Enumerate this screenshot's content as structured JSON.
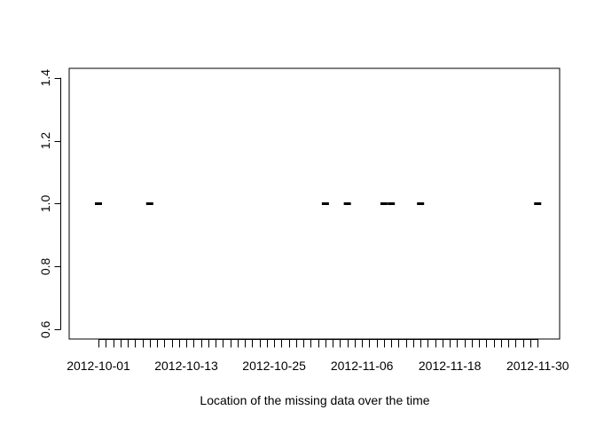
{
  "chart_data": {
    "type": "scatter",
    "title": "",
    "xlabel": "Location of the missing data over the time",
    "ylabel": "",
    "xlim": [
      "2012-09-27",
      "2012-12-03"
    ],
    "ylim": [
      0.57,
      1.43
    ],
    "x_ticks": [
      "2012-10-01",
      "2012-10-02",
      "2012-10-03",
      "2012-10-04",
      "2012-10-05",
      "2012-10-06",
      "2012-10-07",
      "2012-10-08",
      "2012-10-09",
      "2012-10-10",
      "2012-10-11",
      "2012-10-12",
      "2012-10-13",
      "2012-10-14",
      "2012-10-15",
      "2012-10-16",
      "2012-10-17",
      "2012-10-18",
      "2012-10-19",
      "2012-10-20",
      "2012-10-21",
      "2012-10-22",
      "2012-10-23",
      "2012-10-24",
      "2012-10-25",
      "2012-10-26",
      "2012-10-27",
      "2012-10-28",
      "2012-10-29",
      "2012-10-30",
      "2012-10-31",
      "2012-11-01",
      "2012-11-02",
      "2012-11-03",
      "2012-11-04",
      "2012-11-05",
      "2012-11-06",
      "2012-11-07",
      "2012-11-08",
      "2012-11-09",
      "2012-11-10",
      "2012-11-11",
      "2012-11-12",
      "2012-11-13",
      "2012-11-14",
      "2012-11-15",
      "2012-11-16",
      "2012-11-17",
      "2012-11-18",
      "2012-11-19",
      "2012-11-20",
      "2012-11-21",
      "2012-11-22",
      "2012-11-23",
      "2012-11-24",
      "2012-11-25",
      "2012-11-26",
      "2012-11-27",
      "2012-11-28",
      "2012-11-29",
      "2012-11-30"
    ],
    "x_tick_labels": [
      "2012-10-01",
      "2012-10-13",
      "2012-10-25",
      "2012-11-06",
      "2012-11-18",
      "2012-11-30"
    ],
    "y_ticks": [
      0.6,
      0.8,
      1.0,
      1.2,
      1.4
    ],
    "y_tick_labels": [
      "0.6",
      "0.8",
      "1.0",
      "1.2",
      "1.4"
    ],
    "points": [
      {
        "x": "2012-10-01",
        "y": 1.0
      },
      {
        "x": "2012-10-08",
        "y": 1.0
      },
      {
        "x": "2012-11-01",
        "y": 1.0
      },
      {
        "x": "2012-11-04",
        "y": 1.0
      },
      {
        "x": "2012-11-09",
        "y": 1.0
      },
      {
        "x": "2012-11-10",
        "y": 1.0
      },
      {
        "x": "2012-11-14",
        "y": 1.0
      },
      {
        "x": "2012-11-30",
        "y": 1.0
      }
    ],
    "grid": false,
    "legend": "none",
    "colors": {
      "marks": "#000000",
      "axes": "#000000",
      "background": "#ffffff"
    }
  }
}
